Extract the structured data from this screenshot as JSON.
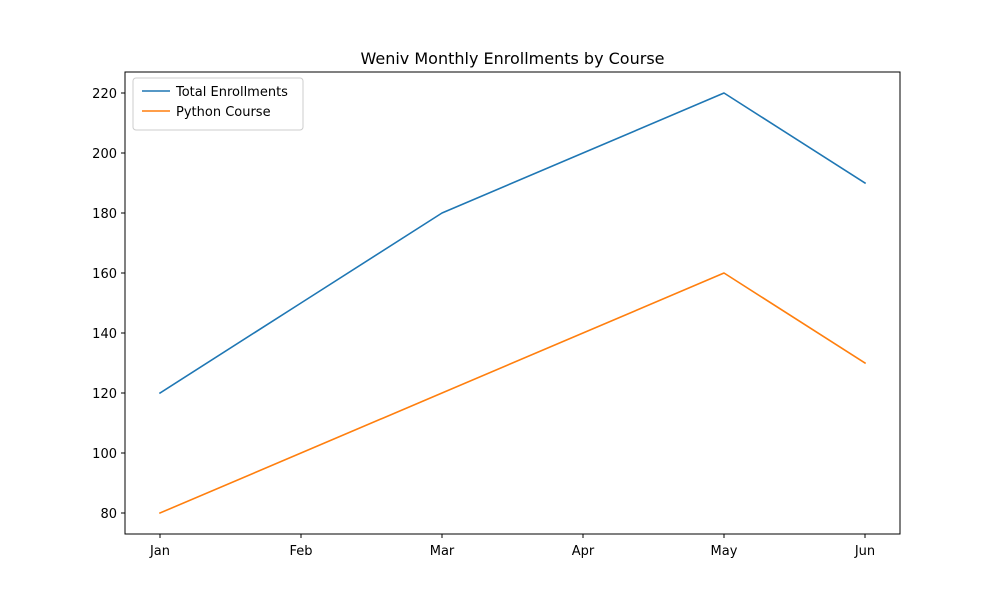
{
  "chart_data": {
    "type": "line",
    "title": "Weniv Monthly Enrollments by Course",
    "xlabel": "",
    "ylabel": "",
    "categories": [
      "Jan",
      "Feb",
      "Mar",
      "Apr",
      "May",
      "Jun"
    ],
    "series": [
      {
        "name": "Total Enrollments",
        "color": "#1f77b4",
        "values": [
          120,
          150,
          180,
          200,
          220,
          190
        ]
      },
      {
        "name": "Python Course",
        "color": "#ff7f0e",
        "values": [
          80,
          100,
          120,
          140,
          160,
          130
        ]
      }
    ],
    "ylim": [
      73,
      227
    ],
    "yticks": [
      80,
      100,
      120,
      140,
      160,
      180,
      200,
      220
    ],
    "grid": false,
    "legend_position": "upper-left"
  }
}
